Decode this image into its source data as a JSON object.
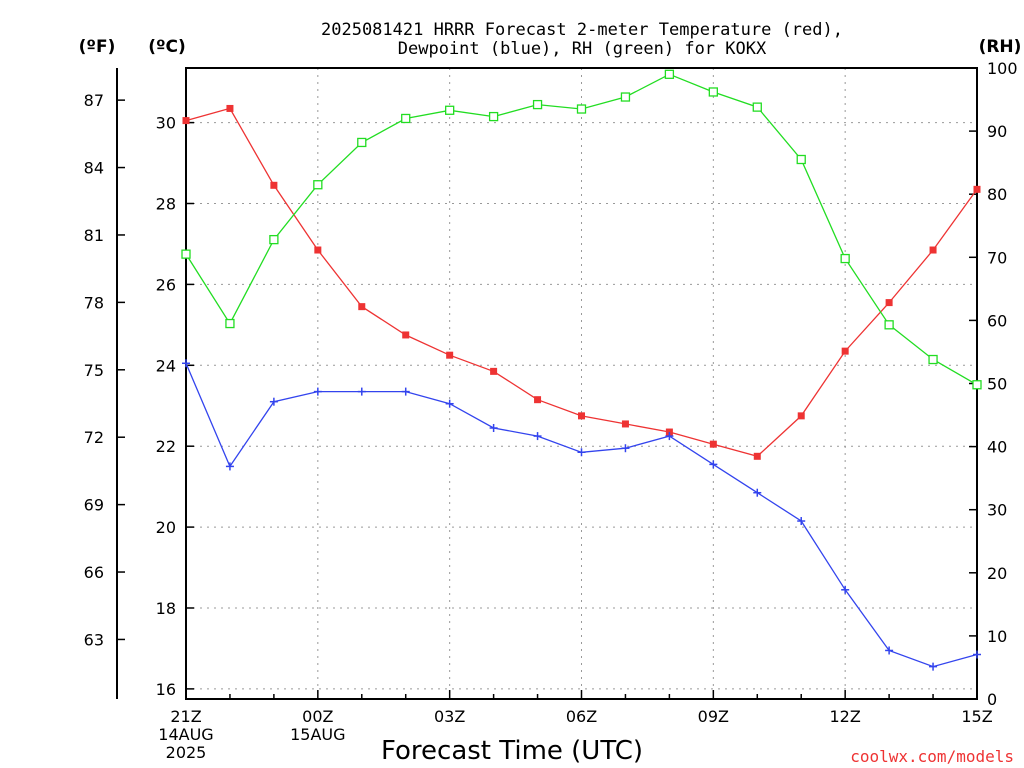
{
  "chart_data": {
    "type": "line",
    "title_lines": [
      "2025081421 HRRR Forecast 2-meter Temperature (red),",
      "Dewpoint (blue), RH (green) for KOKX"
    ],
    "xlabel": "Forecast Time (UTC)",
    "left_outer_unit": "(ºF)",
    "left_inner_unit": "(ºC)",
    "right_unit": "(RH)",
    "x_hours": [
      0,
      1,
      2,
      3,
      4,
      5,
      6,
      7,
      8,
      9,
      10,
      11,
      12,
      13,
      14,
      15,
      16,
      17,
      18
    ],
    "x_ticks": [
      {
        "hour": 0,
        "lines": [
          "21Z",
          "14AUG",
          "2025"
        ]
      },
      {
        "hour": 3,
        "lines": [
          "00Z",
          "15AUG"
        ]
      },
      {
        "hour": 6,
        "lines": [
          "03Z"
        ]
      },
      {
        "hour": 9,
        "lines": [
          "06Z"
        ]
      },
      {
        "hour": 12,
        "lines": [
          "09Z"
        ]
      },
      {
        "hour": 15,
        "lines": [
          "12Z"
        ]
      },
      {
        "hour": 18,
        "lines": [
          "15Z"
        ]
      }
    ],
    "xlim": [
      0,
      18
    ],
    "celsius_ylim": [
      15.75,
      31.35
    ],
    "celsius_ticks": [
      16,
      18,
      20,
      22,
      24,
      26,
      28,
      30
    ],
    "fahrenheit_ticks": [
      63,
      66,
      69,
      72,
      75,
      78,
      81,
      84,
      87
    ],
    "rh_ylim": [
      0,
      100
    ],
    "rh_ticks": [
      0,
      10,
      20,
      30,
      40,
      50,
      60,
      70,
      80,
      90,
      100
    ],
    "grid": true,
    "colors": {
      "temperature": "#ee3333",
      "dewpoint": "#3344ee",
      "rh": "#22dd22"
    },
    "series": [
      {
        "name": "Temperature",
        "axis": "celsius",
        "marker": "filled-square",
        "values": [
          30.05,
          30.35,
          28.45,
          26.85,
          25.45,
          24.75,
          24.25,
          23.85,
          23.15,
          22.75,
          22.55,
          22.35,
          22.05,
          21.75,
          22.75,
          24.35,
          25.55,
          26.85,
          28.35
        ]
      },
      {
        "name": "Dewpoint",
        "axis": "celsius",
        "marker": "plus",
        "values": [
          24.05,
          21.5,
          23.1,
          23.35,
          23.35,
          23.35,
          23.05,
          22.45,
          22.25,
          21.85,
          21.95,
          22.25,
          21.55,
          20.85,
          20.15,
          18.45,
          16.95,
          16.55,
          16.85
        ]
      },
      {
        "name": "RH",
        "axis": "rh",
        "marker": "open-square",
        "values": [
          70.5,
          59.5,
          72.8,
          81.5,
          88.2,
          92.0,
          93.3,
          92.3,
          94.2,
          93.5,
          95.4,
          99.0,
          96.2,
          93.8,
          85.5,
          69.8,
          59.3,
          53.8,
          49.8
        ]
      }
    ]
  },
  "credit": {
    "text": "coolwx.com/models",
    "color": "#ee3333"
  }
}
